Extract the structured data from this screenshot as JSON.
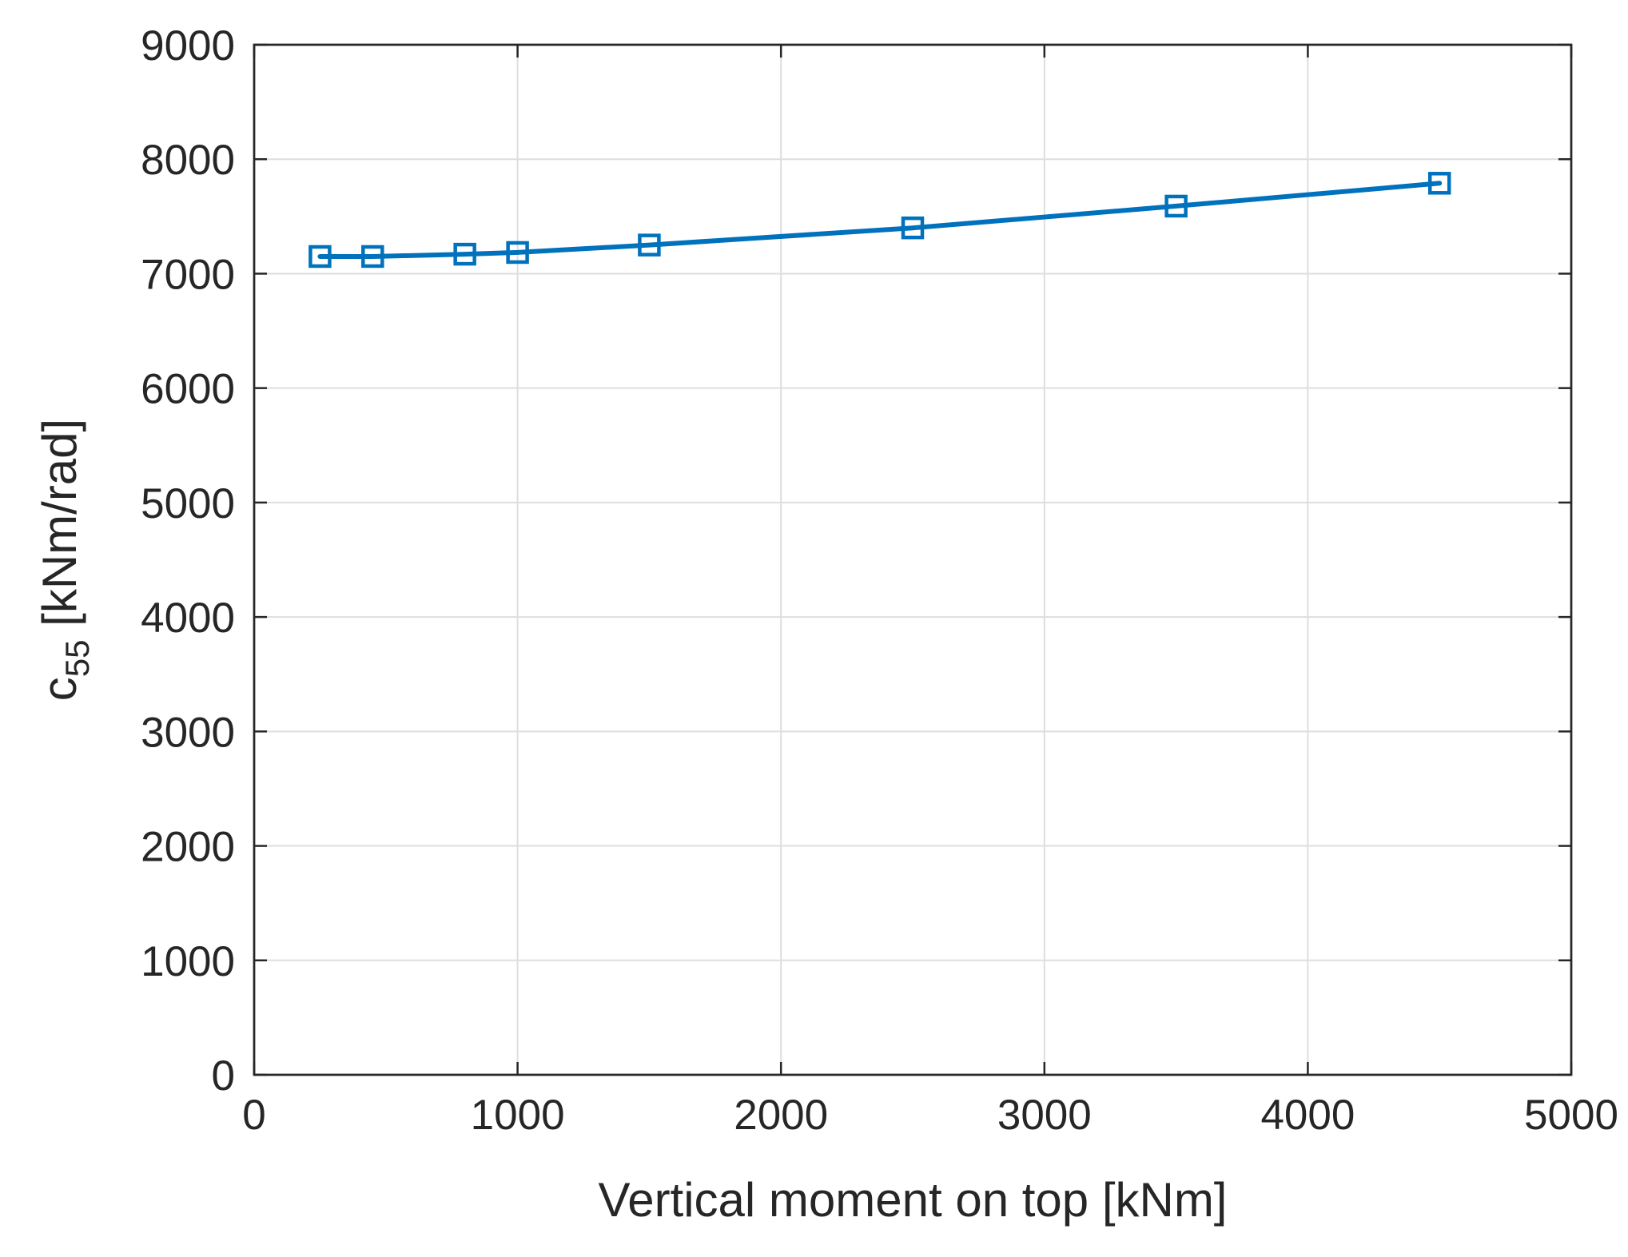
{
  "chart_data": {
    "type": "line",
    "title": "",
    "xlabel": "Vertical moment on top [kNm]",
    "ylabel": {
      "base": "c",
      "subscript": "55",
      "rest": " [kNm/rad]"
    },
    "xlim": [
      0,
      5000
    ],
    "ylim": [
      0,
      9000
    ],
    "xticks": [
      0,
      1000,
      2000,
      3000,
      4000,
      5000
    ],
    "yticks": [
      0,
      1000,
      2000,
      3000,
      4000,
      5000,
      6000,
      7000,
      8000,
      9000
    ],
    "xtick_labels": [
      "0",
      "1000",
      "2000",
      "3000",
      "4000",
      "5000"
    ],
    "ytick_labels": [
      "0",
      "1000",
      "2000",
      "3000",
      "4000",
      "5000",
      "6000",
      "7000",
      "8000",
      "9000"
    ],
    "grid": true,
    "legend": "none",
    "series": [
      {
        "x": [
          250,
          450,
          800,
          1000,
          1500,
          2500,
          3500,
          4500
        ],
        "y": [
          7150,
          7150,
          7170,
          7185,
          7250,
          7400,
          7590,
          7790
        ],
        "marker": "square",
        "color": "#0072bd"
      }
    ]
  }
}
